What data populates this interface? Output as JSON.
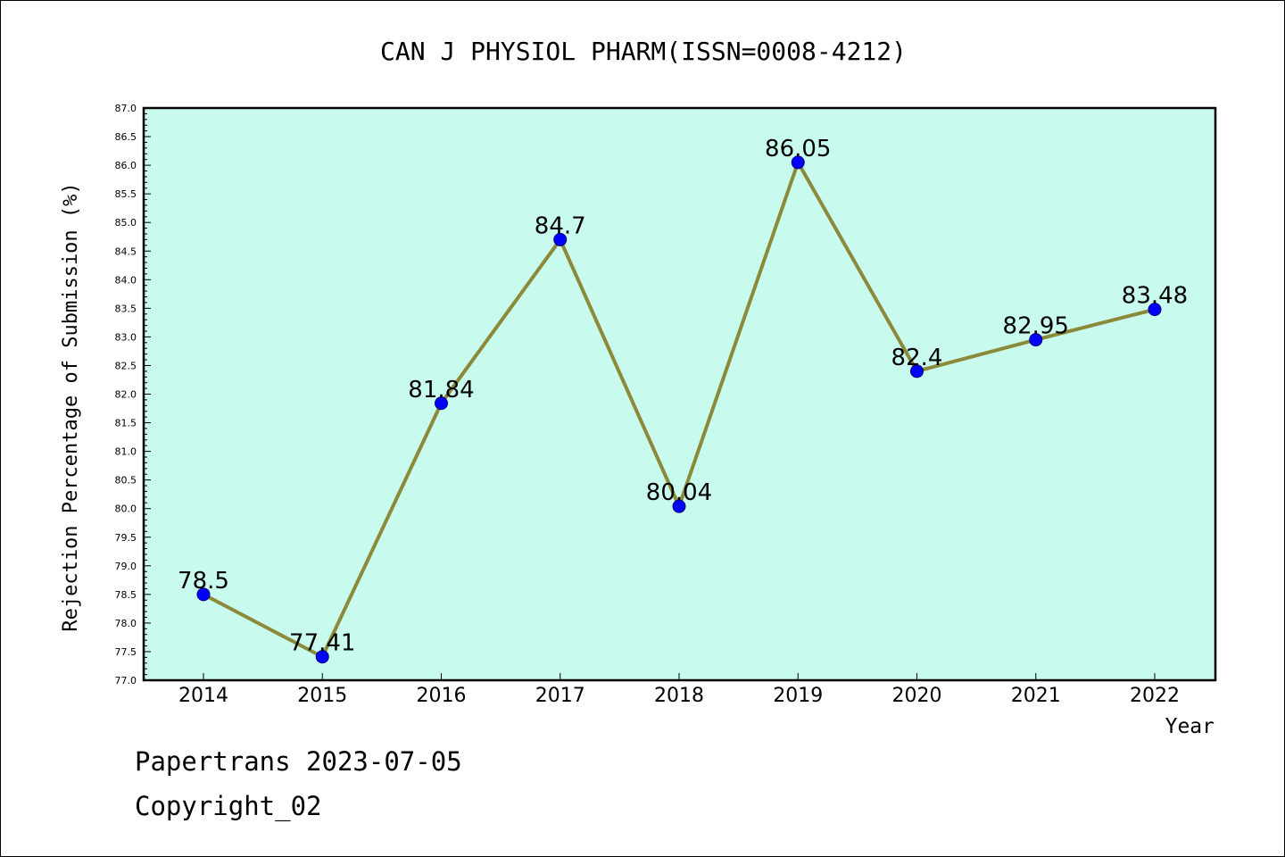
{
  "chart_data": {
    "type": "line",
    "title": "CAN J PHYSIOL PHARM(ISSN=0008-4212)",
    "xlabel": "Year",
    "ylabel": "Rejection Percentage of Submission (%)",
    "categories": [
      "2014",
      "2015",
      "2016",
      "2017",
      "2018",
      "2019",
      "2020",
      "2021",
      "2022"
    ],
    "values": [
      78.5,
      77.41,
      81.84,
      84.7,
      80.04,
      86.05,
      82.4,
      82.95,
      83.48
    ],
    "data_labels": [
      "78.5",
      "77.41",
      "81.84",
      "84.7",
      "80.04",
      "86.05",
      "82.4",
      "82.95",
      "83.48"
    ],
    "ylim": [
      77.0,
      87.0
    ],
    "ytick_step": 0.5,
    "grid": false,
    "legend": "none",
    "colors": {
      "plot_background": "#c8fbed",
      "line": "#8b8a3a",
      "marker": "#0000ff",
      "frame": "#000000"
    }
  },
  "footer": {
    "line1": "Papertrans 2023-07-05",
    "line2": "Copyright_02"
  }
}
